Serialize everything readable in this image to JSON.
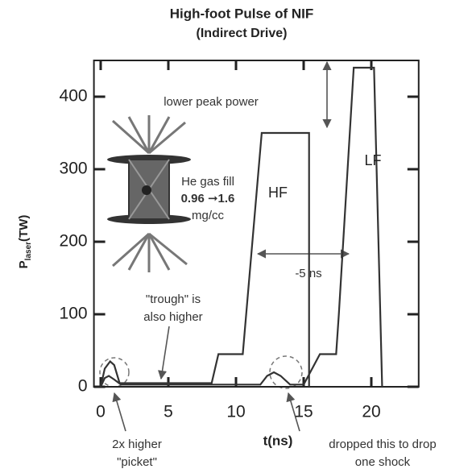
{
  "chart_data": {
    "type": "line",
    "title": "High-foot Pulse of NIF",
    "subtitle": "(Indirect Drive)",
    "y_label": "P",
    "y_label_sub": "laser",
    "y_label_unit": "(TW)",
    "x_label": "t(ns)",
    "xlim": [
      -0.5,
      23.5
    ],
    "ylim": [
      0,
      450
    ],
    "xticks": [
      0,
      5,
      10,
      15,
      20
    ],
    "yticks": [
      0,
      100,
      200,
      300,
      400
    ],
    "series": [
      {
        "name": "HF",
        "color": "#333333",
        "x": [
          0,
          0.3,
          0.7,
          1.0,
          1.4,
          2.0,
          8.2,
          8.7,
          10.5,
          11.9,
          15.4,
          15.4
        ],
        "values": [
          0,
          25,
          35,
          30,
          5,
          5,
          5,
          45,
          45,
          350,
          350,
          0
        ]
      },
      {
        "name": "LF",
        "color": "#333333",
        "x": [
          0,
          0.3,
          0.6,
          1.0,
          1.5,
          8.0,
          11.8,
          12.3,
          12.8,
          13.3,
          14.0,
          15.0,
          16.2,
          17.4,
          17.6,
          18.7,
          20.2,
          20.8
        ],
        "values": [
          0,
          12,
          15,
          10,
          3,
          3,
          3,
          15,
          20,
          15,
          3,
          3,
          45,
          45,
          100,
          440,
          440,
          0
        ]
      }
    ],
    "annotations": {
      "peak": "lower peak power",
      "gas1": "He gas fill",
      "gas2": "0.96 ➞1.6",
      "gas3": "mg/cc",
      "shift": "-5 ns",
      "trough1": "\"trough\" is",
      "trough2": "also higher",
      "picket1": "2x higher",
      "picket2": "\"picket\"",
      "shock1": "dropped this to drop",
      "shock2": "one shock"
    }
  }
}
